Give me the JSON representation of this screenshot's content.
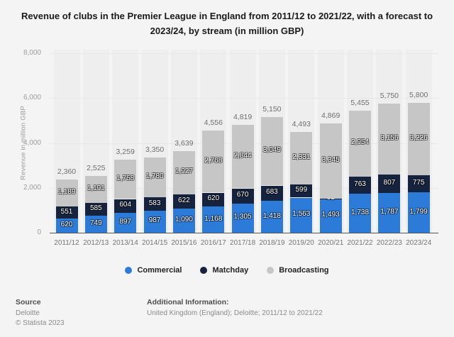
{
  "title": "Revenue of clubs in the Premier League in England from 2011/12 to 2021/22, with a forecast to 2023/24, by stream (in million GBP)",
  "chart_data": {
    "type": "bar",
    "stacked": true,
    "title": "Revenue of clubs in the Premier League in England from 2011/12 to 2021/22, with a forecast to 2023/24, by stream (in million GBP)",
    "xlabel": "",
    "ylabel": "Revenue in million GBP",
    "ylim": [
      0,
      8000
    ],
    "yticks": [
      0,
      2000,
      4000,
      6000,
      8000
    ],
    "grid": true,
    "legend_position": "bottom",
    "categories": [
      "2011/12",
      "2012/13",
      "2013/14",
      "2014/15",
      "2015/16",
      "2016/17",
      "2017/18",
      "2018/19",
      "2019/20",
      "2020/21",
      "2021/22",
      "2022/23",
      "2023/24"
    ],
    "series": [
      {
        "name": "Commercial",
        "color": "#2d7bd9",
        "values": [
          620,
          749,
          897,
          987,
          1090,
          1168,
          1305,
          1418,
          1563,
          1493,
          1738,
          1787,
          1799
        ]
      },
      {
        "name": "Matchday",
        "color": "#15233f",
        "values": [
          551,
          585,
          604,
          583,
          622,
          620,
          670,
          683,
          599,
          31,
          763,
          807,
          775
        ]
      },
      {
        "name": "Broadcasting",
        "color": "#c6c6c6",
        "values": [
          1189,
          1191,
          1758,
          1780,
          1927,
          2768,
          2844,
          3049,
          2331,
          3345,
          2954,
          3156,
          3226
        ]
      }
    ],
    "totals": [
      2360,
      2525,
      3259,
      3350,
      3639,
      4556,
      4819,
      5150,
      4493,
      4869,
      5455,
      5750,
      5800
    ]
  },
  "legend": [
    "Commercial",
    "Matchday",
    "Broadcasting"
  ],
  "footer": {
    "source_label": "Source",
    "source_name": "Deloitte",
    "copyright": "© Statista 2023",
    "additional_label": "Additional Information:",
    "additional_text": "United Kingdom (England); Deloitte; 2011/12 to 2021/22"
  },
  "colors": {
    "page_background": "#f4f4f4",
    "band": "#eeeeee",
    "gridline": "#e7e7e7",
    "axis_line": "#555555",
    "total_label": "#6e6e6e",
    "tick_label": "#757575"
  }
}
